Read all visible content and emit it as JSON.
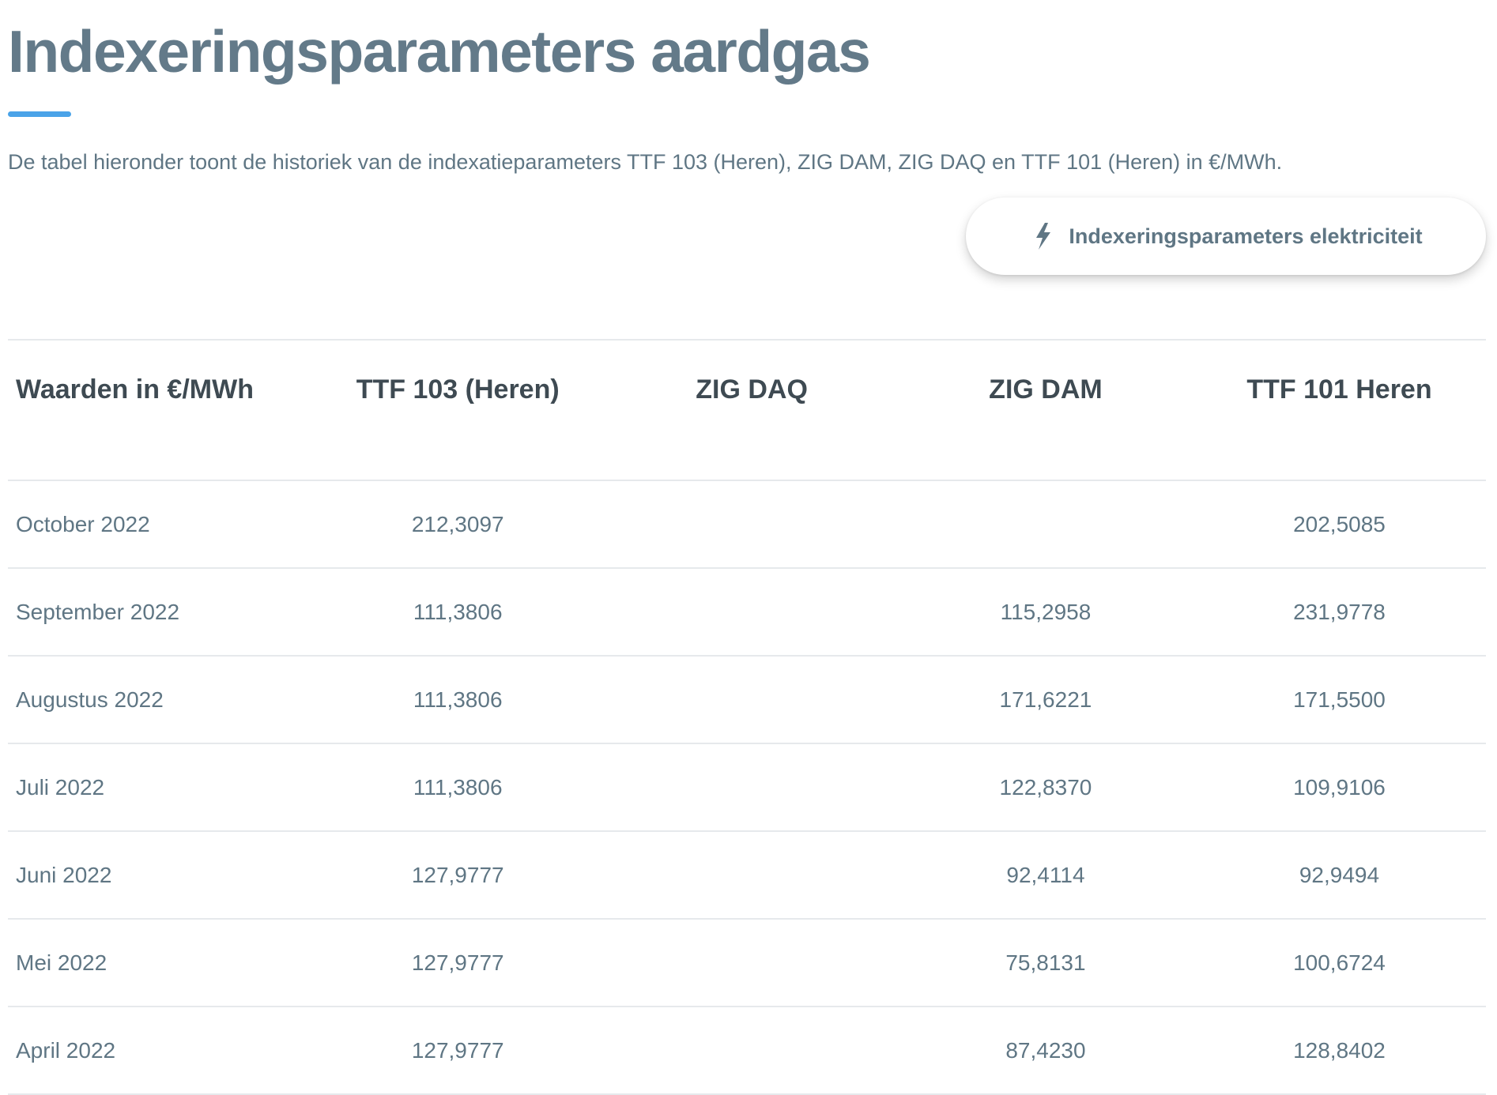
{
  "page": {
    "title": "Indexeringsparameters aardgas",
    "intro": "De tabel hieronder toont de historiek van de indexatieparameters TTF 103 (Heren), ZIG DAM, ZIG DAQ en TTF 101 (Heren) in €/MWh."
  },
  "button": {
    "label": "Indexeringsparameters elektriciteit",
    "icon": "lightning-bolt-icon"
  },
  "colors": {
    "title": "#637a89",
    "accent": "#4aa3e8",
    "text": "#5f7684",
    "header_text": "#3e4a52",
    "divider": "#e6e9ec"
  },
  "table": {
    "headers": [
      "Waarden in €/MWh",
      "TTF 103 (Heren)",
      "ZIG DAQ",
      "ZIG DAM",
      "TTF 101 Heren"
    ],
    "rows": [
      [
        "October 2022",
        "212,3097",
        "",
        "",
        "202,5085"
      ],
      [
        "September 2022",
        "111,3806",
        "",
        "115,2958",
        "231,9778"
      ],
      [
        "Augustus 2022",
        "111,3806",
        "",
        "171,6221",
        "171,5500"
      ],
      [
        "Juli 2022",
        "111,3806",
        "",
        "122,8370",
        "109,9106"
      ],
      [
        "Juni 2022",
        "127,9777",
        "",
        "92,4114",
        "92,9494"
      ],
      [
        "Mei 2022",
        "127,9777",
        "",
        "75,8131",
        "100,6724"
      ],
      [
        "April 2022",
        "127,9777",
        "",
        "87,4230",
        "128,8402"
      ]
    ]
  }
}
